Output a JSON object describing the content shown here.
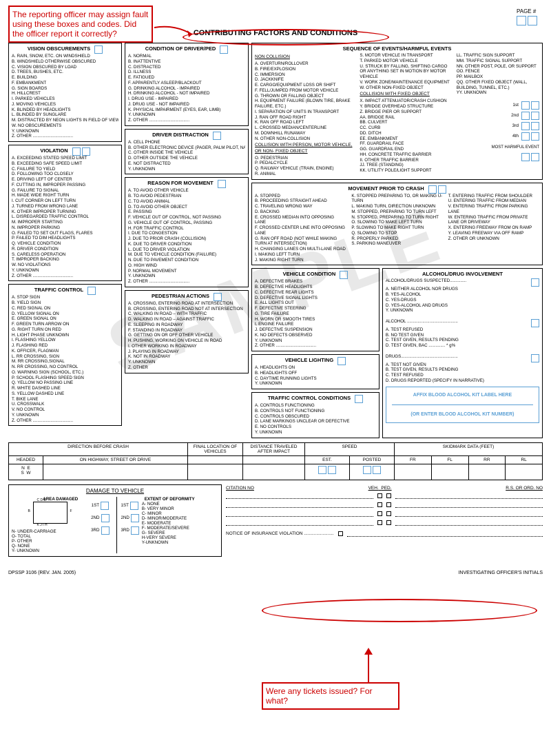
{
  "annotations": {
    "top": "The reporting officer may assign fault using these boxes and codes.  Did the officer report it correctly?",
    "bottom": "Were any tickets issued?  For what?"
  },
  "watermark": "SAMPLE",
  "page_label": "PAGE #",
  "main_title": "CONTRIBUTING FACTORS AND CONDITIONS",
  "vision": {
    "title": "VISION OBSCUREMENTS",
    "items": [
      "A. RAIN, SNOW, ETC. ON WINDSHIELD",
      "B. WINDSHIELD OTHERWISE OBSCURED",
      "C. VISION OBSCURED BY LOAD",
      "D. TREES, BUSHES, ETC.",
      "E. BUILDING",
      "F. EMBANKMENT",
      "G. SIGN BOARDS",
      "H. HILLCREST",
      "I. PARKED VEHICLES",
      "J. MOVING VEHICLES",
      "K. BLINDED BY HEADLIGHTS",
      "L. BLINDED BY SUNGLARE",
      "M. DISTRACTED BY NEON LIGHTS IN FIELD OF VIEW",
      "W. NO OBSCUREMENTS",
      "Y. UNKNOWN",
      "Z. OTHER .................................."
    ]
  },
  "violation": {
    "title": "VIOLATION",
    "items": [
      "A. EXCEEDING STATED SPEED LIMIT",
      "B. EXCEEDING SAFE SPEED LIMIT",
      "C. FAILURE TO YIELD",
      "D. FOLLOWING TOO CLOSELY",
      "E. DRIVING LEFT OF CENTER",
      "F. CUTTING IN, IMPROPER PASSING",
      "G. FAILURE TO SIGNAL",
      "H. MADE WIDE RIGHT TURN",
      "I. CUT CORNER ON LEFT TURN",
      "J. TURNED FROM WRONG LANE",
      "K. OTHER IMPROPER TURNING",
      "L. DISREGARDED TRAFFIC CONTROL",
      "M. IMPROPER STARTING",
      "N. IMPROPER PARKING",
      "O. FAILED TO SET OUT FLAGS, FLARES",
      "P. FAILED TO DIM HEADLIGHTS",
      "Q. VEHICLE CONDITION",
      "R. DRIVER CONDITION",
      "S. CARELESS OPERATION",
      "T. IMPROPER BACKING",
      "W. NO VIOLATIONS",
      "Y. UNKNOWN",
      "Z. OTHER .................................."
    ]
  },
  "traffic_control": {
    "title": "TRAFFIC CONTROL",
    "items": [
      "A. STOP SIGN",
      "B. YIELD SIGN",
      "C. RED SIGNAL ON",
      "D. YELLOW SIGNAL ON",
      "E. GREEN SIGNAL ON",
      "F. GREEN TURN ARROW ON",
      "G. RIGHT TURN ON RED",
      "H. LIGHT PHASE UNKNOWN",
      "I. FLASHING YELLOW",
      "J. FLASHING RED",
      "K. OFFICER, FLAGMAN",
      "L. RR CROSSING, SIGN",
      "M. RR CROSSING,SIGNAL",
      "N. RR CROSSING, NO CONTROL",
      "O. WARNING SIGN (SCHOOL, ETC.)",
      "P. SCHOOL FLASHING SPEED SIGN",
      "Q. YELLOW NO PASSING LINE",
      "R. WHITE DASHED LINE",
      "S. YELLOW DASHED LINE",
      "T. BIKE LANE",
      "U. CROSSWALK",
      "V. NO CONTROL",
      "Y. UNKNOWN",
      "Z. OTHER .................................."
    ]
  },
  "condition_driver": {
    "title": "CONDITION OF DRIVER/PED",
    "items": [
      "A. NORMAL",
      "B. INATTENTIVE",
      "C. DISTRACTED",
      "D. ILLNESS",
      "E. FATIGUED",
      "F. APPARENTLY ASLEEP/BLACKOUT",
      "G. DRINKING ALCOHOL - IMPAIRED",
      "H. DRINKING ALCOHOL - NOT IMPAIRED",
      "I. DRUG USE - IMPAIRED",
      "J. DRUG USE - NOT IMPAIRED",
      "K. PHYSICAL IMPAIRMENT (EYES, EAR, LIMB)",
      "Y. UNKNOWN",
      "Z. OTHER .................................."
    ]
  },
  "driver_distraction": {
    "title": "DRIVER DISTRACTION",
    "items": [
      "A. CELL PHONE",
      "B. OTHER ELECTRONIC DEVICE (PAGER, PALM PILOT, NAVIGATION DEVICE, ETC.)",
      "C. OTHER INSIDE THE VEHICLE",
      "D. OTHER OUTSIDE THE VEHICLE",
      "E. NOT DISTRACTED",
      "Y. UNKNOWN"
    ]
  },
  "reason_movement": {
    "title": "REASON FOR MOVEMENT",
    "items": [
      "A. TO AVOID OTHER VEHICLE",
      "B. TO AVOID PEDESTRIAN",
      "C. TO AVOID ANIMAL",
      "D. TO AVOID OTHER OBJECT",
      "E. PASSING",
      "F. VEHICLE OUT OF CONTROL, NOT PASSING",
      "G. VEHICLE OUT OF CONTROL, PASSING",
      "H. FOR TRAFFIC CONTROL",
      "I. DUE TO CONGESTION",
      "J. DUE TO PRIOR CRASH (COLLISION)",
      "K. DUE TO DRIVER CONDITION",
      "L. DUE TO DRIVER VIOLATION",
      "M. DUE TO VEHICLE CONDITION (FAILURE)",
      "N. DUE TO PAVEMENT CONDITION",
      "O. HIGH WIND",
      "P. NORMAL MOVEMENT",
      "Y. UNKNOWN",
      "Z. OTHER .................................."
    ]
  },
  "pedestrian_actions": {
    "title": "PEDESTRIAN ACTIONS",
    "items": [
      "A. CROSSING, ENTERING ROAD AT INTERSECTION",
      "B. CROSSING, ENTERING ROAD NOT AT INTERSECTION",
      "C. WALKING IN ROAD – WITH TRAFFIC",
      "D. WALKING IN ROAD – AGAINST TRAFFIC",
      "E. SLEEPING IN ROADWAY",
      "F. STANDING IN ROADWAY",
      "G. GETTING ON OR OFF OTHER VEHICLE",
      "H. PUSHING, WORKING ON VEHICLE IN ROAD",
      "I. OTHER WORKING IN ROADWAY",
      "J. PLAYING IN ROADWAY",
      "K. NOT IN ROADWAY",
      "Y. UNKNOWN",
      "Z. OTHER"
    ]
  },
  "sequence": {
    "title": "SEQUENCE OF EVENTS/HARMFUL EVENTS",
    "non_collision_title": "NON COLLISION",
    "non_collision": [
      "A. OVERTURN/ROLLOVER",
      "B. FIRE/EXPLOSION",
      "C. IMMERSION",
      "D. JACKKNIFE",
      "E. CARGO/EQUIPMENT LOSS OR SHIFT",
      "F. FELL/JUMPED FROM MOTOR VEHICLE",
      "G. THROWN OR FALLING OBJECT",
      "H. EQUIPMENT FAILURE (BLOWN TIRE, BRAKE FAILURE, ETC.)",
      "I. SEPARATION OF UNITS IN TRANSPORT",
      "J. RAN OFF ROAD RIGHT",
      "K. RAN OFF ROAD LEFT",
      "L. CROSSED MEDIAN/CENTERLINE",
      "M. DOWNHILL RUNAWAY",
      "N. OTHER NON-COLLISION"
    ],
    "collision_person_title": "COLLISION WITH PERSON, MOTOR VEHICLE, OR NON- FIXED OBJECT",
    "collision_person": [
      "O. PEDESTRIAN",
      "P. PEDALCYCLE",
      "Q. RAILWAY VEHICLE (TRAIN, ENGINE)",
      "R. ANIMAL"
    ],
    "col2_top": [
      "S. MOTOR VEHICLE IN TRANSPORT",
      "T. PARKED MOTOR VEHICLE",
      "U. STRUCK BY FALLING, SHIFTING CARGO OR ANYTHING SET IN MOTION BY MOTOR VEHICLE",
      "V. WORK ZONE/MAINTENANCE EQUIPMENT",
      "W. OTHER NON-FIXED OBJECT"
    ],
    "collision_fixed_title": "COLLISION WITH FIXED OBJECT",
    "collision_fixed": [
      "X. IMPACT ATTENUATOR/CRASH CUSHION",
      "Y. BRIDGE OVERHEAD STRUCTURE",
      "Z. BRIDGE PIER OR SUPPORT",
      "AA. BRIDGE RAIL",
      "BB. CULVERT",
      "CC. CURB",
      "DD. DITCH",
      "EE. EMBANKMENT",
      "FF. GUARDRAIL FACE",
      "GG. GUARDRAIL END",
      "HH. CONCRETE TRAFFIC BARRIER",
      "II. OTHER TRAFFIC BARRIER",
      "JJ. TREE (STANDING)",
      "KK. UTILITY POLE/LIGHT SUPPORT"
    ],
    "col3": [
      "LL. TRAFFIC SIGN SUPPORT",
      "MM. TRAFFIC SIGNAL SUPPORT",
      "NN. OTHER POST, POLE, OR SUPPORT",
      "OO. FENCE",
      "PP. MAILBOX",
      "QQ. OTHER FIXED OBJECT (WALL, BUILDING, TUNNEL, ETC.)",
      "YY. UNKNOWN"
    ],
    "ordinals": [
      "1st",
      "2nd",
      "3rd",
      "4th"
    ],
    "most_harmful": "MOST HARMFUL EVENT"
  },
  "movement_prior": {
    "title": "MOVEMENT PRIOR TO CRASH",
    "col1": [
      "A. STOPPED",
      "B. PROCEEDING STRAIGHT AHEAD",
      "C. TRAVELING WRONG WAY",
      "D. BACKING",
      "E. CROSSED MEDIAN INTO OPPOSING LANE",
      "F. CROSSED CENTER LINE INTO OPPOSING LANE",
      "G. RAN OFF ROAD (NOT WHILE MAKING TURN AT INTERSECTION)",
      "H. CHANGING LANES ON MULTI-LANE ROAD",
      "I. MAKING LEFT TURN",
      "J. MAKING RIGHT TURN"
    ],
    "col2": [
      "K. STOPPED PREPARING TO, OR MAKING U-TURN",
      "L. MAKING TURN, DIRECTION UNKNOWN",
      "M. STOPPED, PREPARING TO TURN LEFT",
      "N. STOPPED, PREPARING TO TURN RIGHT",
      "O. SLOWING TO MAKE LEFT TURN",
      "P. SLOWING TO MAKE RIGHT TURN",
      "Q. SLOWING TO STOP",
      "R. PROPERLY PARKED",
      "S. PARKING MANEUVER"
    ],
    "col3": [
      "T. ENTERING TRAFFIC FROM SHOULDER",
      "U. ENTERING TRAFFIC FROM MEDIAN",
      "V. ENTERING TRAFFIC FROM PARKING LANE",
      "W. ENTERING TRAFFIC FROM PRIVATE LANE OR DRIVEWAY",
      "X. ENTERING FREEWAY FROM ON RAMP",
      "Y. LEAVING FREEWAY VIA OFF RAMP",
      "Z. OTHER OR UNKNOWN"
    ]
  },
  "vehicle_condition": {
    "title": "VEHICLE CONDITION",
    "items": [
      "A. DEFECTIVE BRAKES",
      "B. DEFECTIVE HEADLIGHTS",
      "C. DEFECTIVE REAR LIGHTS",
      "D. DEFECTIVE SIGNAL LIGHTS",
      "E. ALL LIGHTS OUT",
      "F. DEFECTIVE STEERING",
      "G. TIRE FAILURE",
      "H. WORN OR SMOOTH TIRES",
      "I. ENGINE FAILURE",
      "J. DEFECTIVE SUSPENSION",
      "K. NO DEFECTS OBSERVED",
      "Y. UNKNOWN",
      "Z. OTHER .................................."
    ]
  },
  "vehicle_lighting": {
    "title": "VEHICLE LIGHTING",
    "items": [
      "A. HEADLIGHTS ON",
      "B. HEADLIGHTS OFF",
      "C. DAYTIME RUNNING LIGHTS",
      "Y. UNKNOWN"
    ]
  },
  "traffic_control_cond": {
    "title": "TRAFFIC CONTROL CONDITIONS",
    "items": [
      "A. CONTROLS FUNCTIONING",
      "B. CONTROLS NOT FUNCTIONING",
      "C. CONTROLS OBSCURED",
      "D. LANE MARKINGS UNCLEAR OR DEFECTIVE",
      "E. NO CONTROLS",
      "Y. UNKNOWN"
    ]
  },
  "alcohol": {
    "title": "ALCOHOL/DRUG INVOLVEMENT",
    "suspected_title": "ALCOHOL/DRUGS SUSPECTED..............",
    "suspected": [
      "A. NEITHER ALCOHOL NOR DRUGS",
      "B. YES-ALCOHOL",
      "C. YES-DRUGS",
      "D. YES-ALCOHOL AND DRUGS",
      "Y. UNKNOWN"
    ],
    "alcohol_title": "ALCOHOL ...........................................",
    "alcohol_list": [
      "A. TEST REFUSED",
      "B. NO TEST GIVEN",
      "C. TEST GIVEN, RESULTS PENDING",
      "D. TEST GIVEN, BAC ..............   *             g%"
    ],
    "drugs_title": "DRUGS................................................",
    "drugs_list": [
      "A. TEST NOT GIVEN",
      "B. TEST GIVEN, RESULTS PENDING",
      "C. TEST REFUSED",
      "D. DRUGS REPORTED (SPECIFY IN NARRATIVE)"
    ],
    "affix_label": "AFFIX BLOOD ALCOHOL KIT LABEL HERE",
    "enter_label": "(OR ENTER BLOOD ALCOHOL KIT NUMBER)"
  },
  "bottom_table": {
    "headers": [
      "DIRECTION BEFORE CRASH",
      "FINAL LOCATION OF VEHICLES",
      "DISTANCE TRAVELED AFTER IMPACT",
      "SPEED",
      "SKIDMARK DATA (FEET)"
    ],
    "speed_sub": [
      "EST.",
      "POSTED"
    ],
    "skid_sub": [
      "FR",
      "FL",
      "RR",
      "RL"
    ],
    "headed": "HEADED",
    "compass": "N  E\nS  W",
    "highway": "ON HIGHWAY, STREET OR DRIVE"
  },
  "damage": {
    "title": "DAMAGE TO VEHICLE",
    "area_title": "AREA DAMAGED",
    "area_items": [
      "N- UNDER-CARRIAGE",
      "O- TOTAL",
      "P- OTHER",
      "Q- NONE",
      "Y- UNKNOWN"
    ],
    "area_ord": [
      "1ST",
      "2ND",
      "3RD"
    ],
    "extent_title": "EXTENT OF DEFORMITY",
    "extent_items": [
      "A- NONE",
      "B- VERY MINOR",
      "C- MINOR",
      "D- MINOR/MODERATE",
      "E- MODERATE",
      "F- MODERATE/SEVERE",
      "G- SEVERE",
      "H-VERY SEVERE",
      "Y-UNKNOWN"
    ],
    "extent_ord": [
      "1ST",
      "2ND",
      "3RD"
    ]
  },
  "citation": {
    "citation_no": "CITATION NO",
    "rs_ord": "R.S. OR ORD. NO",
    "veh": "VEH.",
    "ped": "PED.",
    "notice": "NOTICE OF INSURANCE VIOLATION ........................"
  },
  "footer": {
    "left": "DPSSP 3106 (REV. JAN. 2005)",
    "right": "INVESTIGATING OFFICER'S INITIALS"
  }
}
